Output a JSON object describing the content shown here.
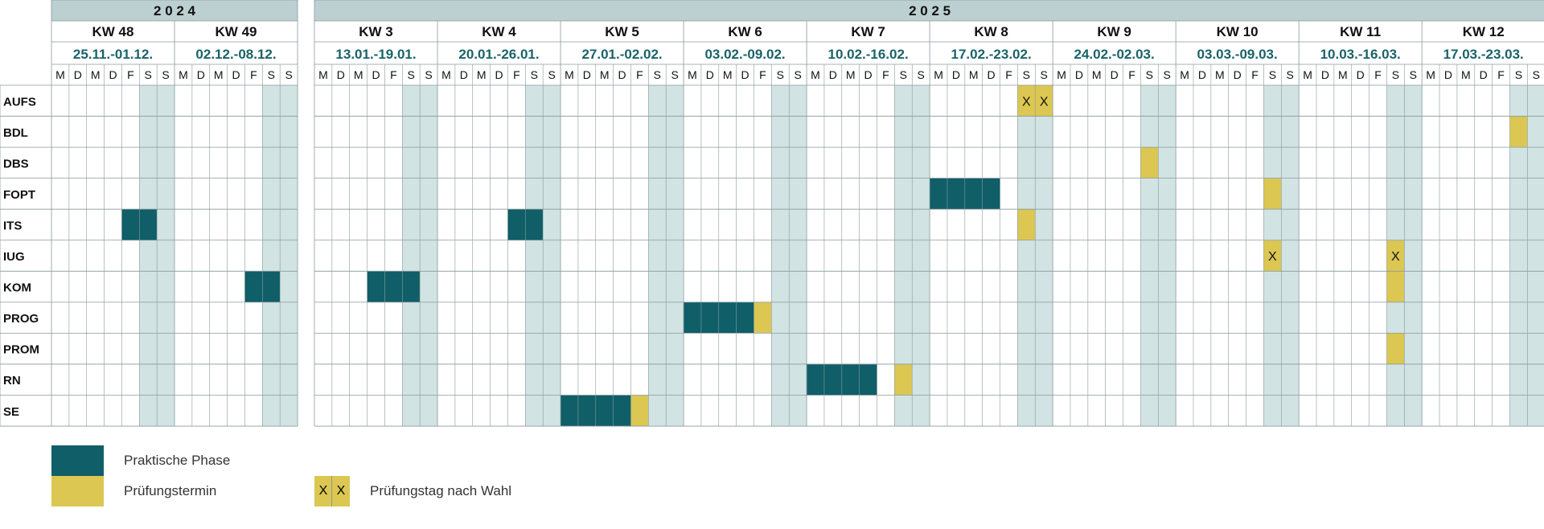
{
  "colors": {
    "header_bg": "#bccfd1",
    "weekend_bg": "#d2e3e4",
    "practical": "#0f5e68",
    "exam": "#dbc752",
    "date_text": "#1a6369",
    "grid_line": "#8a9a9c"
  },
  "years": [
    {
      "label": "2 0 2 4",
      "weeks": [
        {
          "kw": "KW 48",
          "dates": "25.11.-01.12."
        },
        {
          "kw": "KW 49",
          "dates": "02.12.-08.12."
        }
      ]
    },
    {
      "label": "2 0 2 5",
      "weeks": [
        {
          "kw": "KW 3",
          "dates": "13.01.-19.01."
        },
        {
          "kw": "KW 4",
          "dates": "20.01.-26.01."
        },
        {
          "kw": "KW 5",
          "dates": "27.01.-02.02."
        },
        {
          "kw": "KW 6",
          "dates": "03.02.-09.02."
        },
        {
          "kw": "KW 7",
          "dates": "10.02.-16.02."
        },
        {
          "kw": "KW 8",
          "dates": "17.02.-23.02."
        },
        {
          "kw": "KW 9",
          "dates": "24.02.-02.03."
        },
        {
          "kw": "KW 10",
          "dates": "03.03.-09.03."
        },
        {
          "kw": "KW 11",
          "dates": "10.03.-16.03."
        },
        {
          "kw": "KW 12",
          "dates": "17.03.-23.03."
        }
      ]
    }
  ],
  "day_letters": [
    "M",
    "D",
    "M",
    "D",
    "F",
    "S",
    "S"
  ],
  "subjects": [
    {
      "name": "AUFS",
      "entries": [
        {
          "week": "KW 8",
          "day": 5,
          "type": "exam_choice",
          "mark": "X"
        },
        {
          "week": "KW 8",
          "day": 6,
          "type": "exam_choice",
          "mark": "X"
        }
      ]
    },
    {
      "name": "BDL",
      "entries": [
        {
          "week": "KW 12",
          "day": 5,
          "type": "exam"
        }
      ]
    },
    {
      "name": "DBS",
      "entries": [
        {
          "week": "KW 9",
          "day": 5,
          "type": "exam"
        }
      ]
    },
    {
      "name": "FOPT",
      "entries": [
        {
          "week": "KW 8",
          "day": 0,
          "type": "practical"
        },
        {
          "week": "KW 8",
          "day": 1,
          "type": "practical"
        },
        {
          "week": "KW 8",
          "day": 2,
          "type": "practical"
        },
        {
          "week": "KW 8",
          "day": 3,
          "type": "practical"
        },
        {
          "week": "KW 10",
          "day": 5,
          "type": "exam"
        }
      ]
    },
    {
      "name": "ITS",
      "entries": [
        {
          "week": "KW 48",
          "day": 4,
          "type": "practical"
        },
        {
          "week": "KW 48",
          "day": 5,
          "type": "practical"
        },
        {
          "week": "KW 4",
          "day": 4,
          "type": "practical"
        },
        {
          "week": "KW 4",
          "day": 5,
          "type": "practical"
        },
        {
          "week": "KW 8",
          "day": 5,
          "type": "exam"
        }
      ]
    },
    {
      "name": "IUG",
      "entries": [
        {
          "week": "KW 10",
          "day": 5,
          "type": "exam_choice",
          "mark": "X"
        },
        {
          "week": "KW 11",
          "day": 5,
          "type": "exam_choice",
          "mark": "X"
        }
      ]
    },
    {
      "name": "KOM",
      "entries": [
        {
          "week": "KW 49",
          "day": 4,
          "type": "practical"
        },
        {
          "week": "KW 49",
          "day": 5,
          "type": "practical"
        },
        {
          "week": "KW 3",
          "day": 3,
          "type": "practical"
        },
        {
          "week": "KW 3",
          "day": 4,
          "type": "practical"
        },
        {
          "week": "KW 3",
          "day": 5,
          "type": "practical"
        },
        {
          "week": "KW 11",
          "day": 5,
          "type": "exam"
        }
      ]
    },
    {
      "name": "PROG",
      "entries": [
        {
          "week": "KW 6",
          "day": 0,
          "type": "practical"
        },
        {
          "week": "KW 6",
          "day": 1,
          "type": "practical"
        },
        {
          "week": "KW 6",
          "day": 2,
          "type": "practical"
        },
        {
          "week": "KW 6",
          "day": 3,
          "type": "practical"
        },
        {
          "week": "KW 6",
          "day": 4,
          "type": "exam"
        }
      ]
    },
    {
      "name": "PROM",
      "entries": [
        {
          "week": "KW 11",
          "day": 5,
          "type": "exam"
        }
      ]
    },
    {
      "name": "RN",
      "entries": [
        {
          "week": "KW 7",
          "day": 0,
          "type": "practical"
        },
        {
          "week": "KW 7",
          "day": 1,
          "type": "practical"
        },
        {
          "week": "KW 7",
          "day": 2,
          "type": "practical"
        },
        {
          "week": "KW 7",
          "day": 3,
          "type": "practical"
        },
        {
          "week": "KW 7",
          "day": 5,
          "type": "exam"
        }
      ]
    },
    {
      "name": "SE",
      "entries": [
        {
          "week": "KW 5",
          "day": 0,
          "type": "practical"
        },
        {
          "week": "KW 5",
          "day": 1,
          "type": "practical"
        },
        {
          "week": "KW 5",
          "day": 2,
          "type": "practical"
        },
        {
          "week": "KW 5",
          "day": 3,
          "type": "practical"
        },
        {
          "week": "KW 5",
          "day": 4,
          "type": "exam"
        }
      ]
    }
  ],
  "legend": {
    "practical_label": "Praktische Phase",
    "exam_label": "Prüfungstermin",
    "choice_label": "Prüfungstag nach Wahl",
    "choice_mark": "X"
  }
}
